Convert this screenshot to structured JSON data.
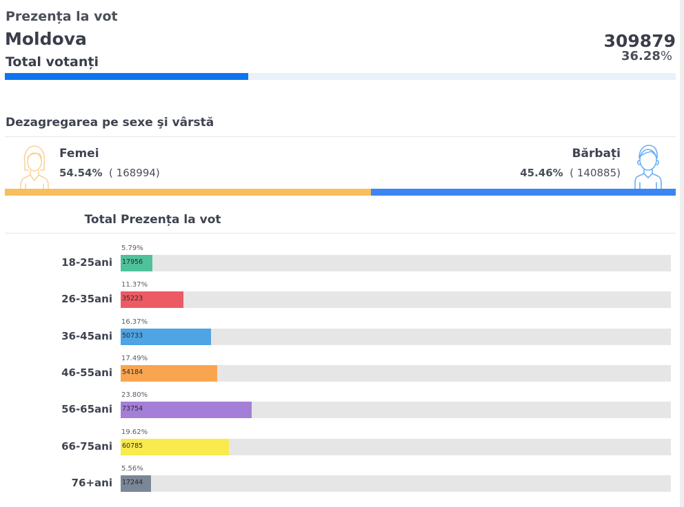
{
  "header": {
    "subtitle": "Prezența la vot",
    "region": "Moldova",
    "total_label": "Total votanți",
    "total_value": "309879",
    "total_percent_value": "36.28",
    "percent_sign": "%",
    "turnout_fraction": 0.3628,
    "bar_color": "#0d75ee"
  },
  "gender": {
    "section_title": "Dezagregarea pe sexe şi vârstă",
    "female": {
      "label": "Femei",
      "percent": "54.54%",
      "count": "( 168994)",
      "fraction": 0.5454,
      "color": "#f8be5e",
      "icon": "woman-avatar-icon"
    },
    "male": {
      "label": "Bărbați",
      "percent": "45.46%",
      "count": "( 140885)",
      "fraction": 0.4546,
      "color": "#3b86f2",
      "icon": "man-avatar-icon"
    }
  },
  "age": {
    "header_total": "Total",
    "header_presence": "Prezența la vot",
    "groups": [
      {
        "label": "18-25ani",
        "percent": "5.79%",
        "count": "17956",
        "color": "#4fc19b"
      },
      {
        "label": "26-35ani",
        "percent": "11.37%",
        "count": "35223",
        "color": "#ec5a64"
      },
      {
        "label": "36-45ani",
        "percent": "16.37%",
        "count": "50733",
        "color": "#4ea4e4"
      },
      {
        "label": "46-55ani",
        "percent": "17.49%",
        "count": "54184",
        "color": "#f9a54f"
      },
      {
        "label": "56-65ani",
        "percent": "23.80%",
        "count": "73754",
        "color": "#a47fd8"
      },
      {
        "label": "66-75ani",
        "percent": "19.62%",
        "count": "60785",
        "color": "#f9ea4e"
      },
      {
        "label": "76+ani",
        "percent": "5.56%",
        "count": "17244",
        "color": "#7a8796"
      }
    ]
  }
}
